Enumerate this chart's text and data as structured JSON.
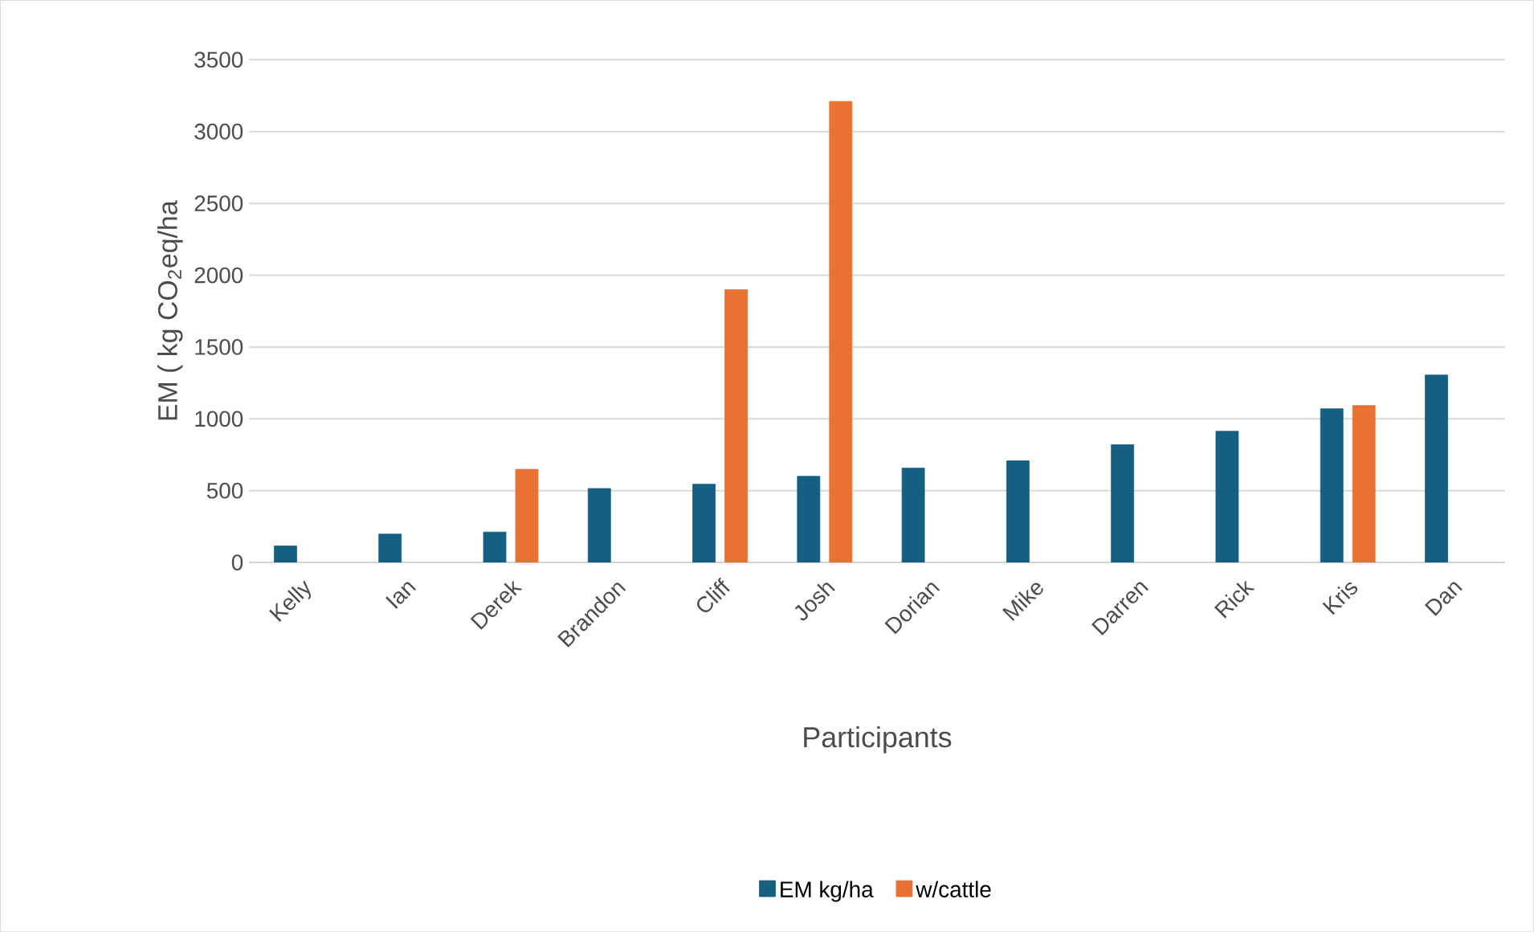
{
  "chart_data": {
    "type": "bar",
    "xlabel": "Participants",
    "ylabel": "EM ( kg CO$_{2}$eq/ha",
    "categories": [
      "Kelly",
      "Ian",
      "Derek",
      "Brandon",
      "Cliff",
      "Josh",
      "Dorian",
      "Mike",
      "Darren",
      "Rick",
      "Kris",
      "Dan"
    ],
    "series": [
      {
        "name": "EM kg/ha",
        "color": "#156082",
        "values": [
          115,
          198,
          212,
          515,
          545,
          600,
          657,
          708,
          820,
          914,
          1070,
          1305
        ]
      },
      {
        "name": "w/cattle",
        "color": "#e97132",
        "values": [
          null,
          null,
          649,
          null,
          1900,
          3210,
          null,
          null,
          null,
          null,
          1093,
          null
        ]
      }
    ],
    "ylim": [
      0,
      3500
    ],
    "yticks": [
      0,
      500,
      1000,
      1500,
      2000,
      2500,
      3000,
      3500
    ],
    "grid": "y",
    "legend": "bottom"
  }
}
